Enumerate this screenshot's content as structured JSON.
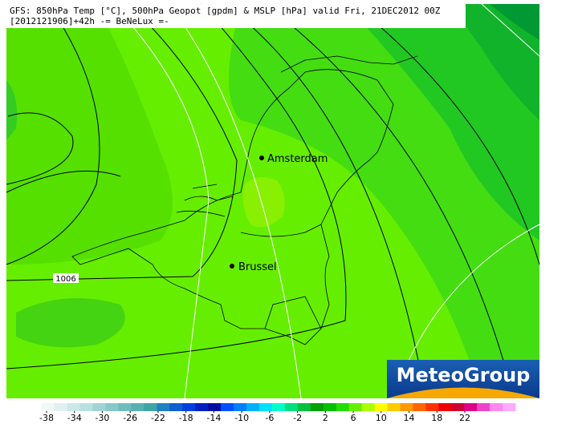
{
  "header": {
    "line1": "GFS: 850hPa Temp [°C], 500hPa Geopot [gpdm] & MSLP [hPa] valid Fri, 21DEC2012 00Z",
    "line2": "[2012121906]+42h -= BeNeLux =-"
  },
  "cities": [
    {
      "label": "Amsterdam"
    },
    {
      "label": "Brussel"
    }
  ],
  "isobar_label": "1006",
  "logo": "MeteoGroup",
  "colorbar": {
    "ticks": [
      -38,
      -34,
      -30,
      -26,
      -22,
      -18,
      -14,
      -10,
      -6,
      -2,
      2,
      6,
      10,
      14,
      18,
      22
    ]
  }
}
